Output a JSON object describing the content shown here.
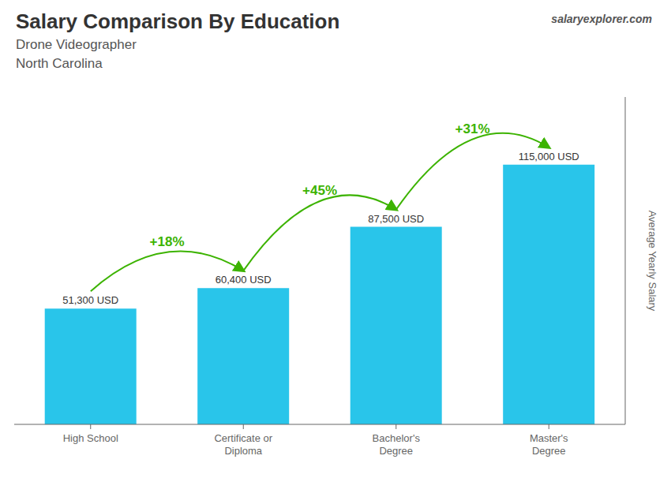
{
  "chart_data": {
    "type": "bar",
    "title": "Salary Comparison By Education",
    "subtitle": [
      "Drone Videographer",
      "North Carolina"
    ],
    "categories": [
      "High School",
      "Certificate or\nDiploma",
      "Bachelor's\nDegree",
      "Master's\nDegree"
    ],
    "values": [
      51300,
      60400,
      87500,
      115000
    ],
    "value_labels": [
      "51,300 USD",
      "60,400 USD",
      "87,500 USD",
      "115,000 USD"
    ],
    "data_labels": true,
    "annotations": [
      "+18%",
      "+45%",
      "+31%",
      "salaryexplorer.com"
    ],
    "ylabel": "Average Yearly Salary",
    "ylim": [
      0,
      145000
    ],
    "tick_labels": "x",
    "grid": false,
    "color": "#29c5ea"
  }
}
